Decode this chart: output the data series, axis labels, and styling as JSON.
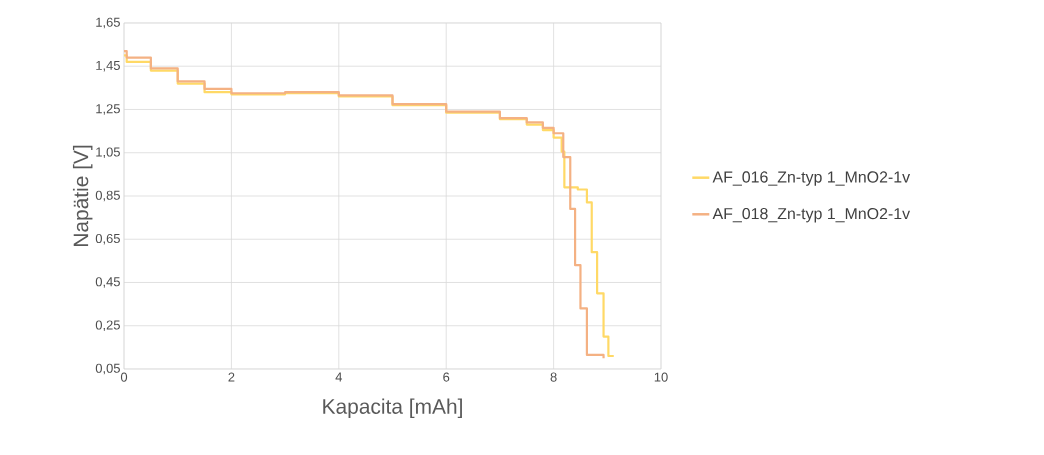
{
  "chart_data": {
    "type": "step",
    "xlabel": "Kapacita [mAh]",
    "ylabel": "Napätie [V]",
    "xlim": [
      0,
      10
    ],
    "xticks": [
      0,
      2,
      4,
      6,
      8,
      10
    ],
    "ylim": [
      0.05,
      1.65
    ],
    "yticks": [
      {
        "value": 0.05,
        "label": "0,05"
      },
      {
        "value": 0.25,
        "label": "0,25"
      },
      {
        "value": 0.45,
        "label": "0,45"
      },
      {
        "value": 0.65,
        "label": "0,65"
      },
      {
        "value": 0.85,
        "label": "0,85"
      },
      {
        "value": 1.05,
        "label": "1,05"
      },
      {
        "value": 1.25,
        "label": "1,25"
      },
      {
        "value": 1.45,
        "label": "1,45"
      },
      {
        "value": 1.65,
        "label": "1,65"
      }
    ],
    "grid": true,
    "legend": "right",
    "marker": "none",
    "line_style": "solid",
    "series": [
      {
        "name": "AF_016_Zn-typ 1_MnO2-1v",
        "color": "#ffd966",
        "x": [
          0,
          0.05,
          0.5,
          1.0,
          1.5,
          2.0,
          3.0,
          4.0,
          5.0,
          6.0,
          7.0,
          7.5,
          7.8,
          8.0,
          8.15,
          8.2,
          8.45,
          8.62,
          8.71,
          8.81,
          8.93,
          9.02,
          9.12
        ],
        "values": [
          1.5,
          1.47,
          1.43,
          1.37,
          1.33,
          1.32,
          1.325,
          1.31,
          1.27,
          1.235,
          1.205,
          1.18,
          1.155,
          1.12,
          1.055,
          0.89,
          0.88,
          0.82,
          0.59,
          0.4,
          0.2,
          0.11,
          0.11
        ]
      },
      {
        "name": "AF_018_Zn-typ 1_MnO2-1v",
        "color": "#f4b183",
        "x": [
          0,
          0.05,
          0.5,
          1.0,
          1.5,
          2.0,
          3.0,
          4.0,
          5.0,
          6.0,
          7.0,
          7.5,
          7.8,
          8.0,
          8.18,
          8.31,
          8.4,
          8.5,
          8.62,
          8.93
        ],
        "values": [
          1.52,
          1.49,
          1.44,
          1.38,
          1.345,
          1.325,
          1.33,
          1.315,
          1.275,
          1.24,
          1.21,
          1.19,
          1.165,
          1.14,
          1.03,
          0.79,
          0.53,
          0.33,
          0.115,
          0.1
        ]
      }
    ]
  }
}
